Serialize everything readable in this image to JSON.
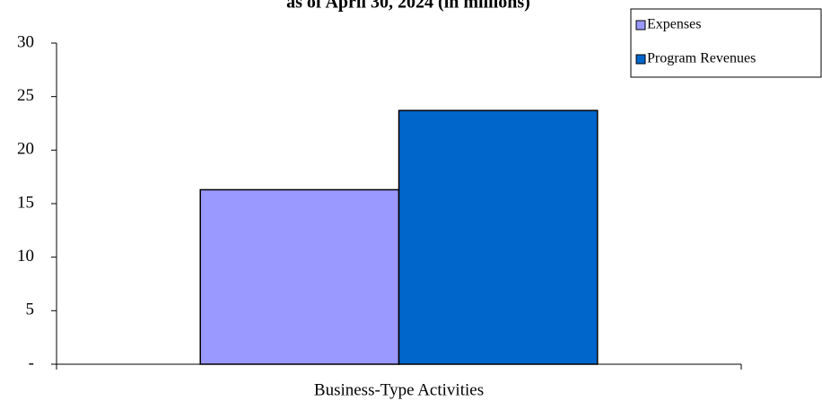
{
  "chart_data": {
    "type": "bar",
    "title": "as of April 30, 2024 (in millions)",
    "categories": [
      "Business-Type Activities"
    ],
    "series": [
      {
        "name": "Expenses",
        "color": "#9999ff",
        "values": [
          16.3
        ]
      },
      {
        "name": "Program Revenues",
        "color": "#0066cc",
        "values": [
          23.7
        ]
      }
    ],
    "ylim": [
      0,
      30
    ],
    "yticks": [
      {
        "value": 0,
        "label": "-"
      },
      5,
      10,
      15,
      20,
      25,
      30
    ],
    "legend": "upper right"
  }
}
